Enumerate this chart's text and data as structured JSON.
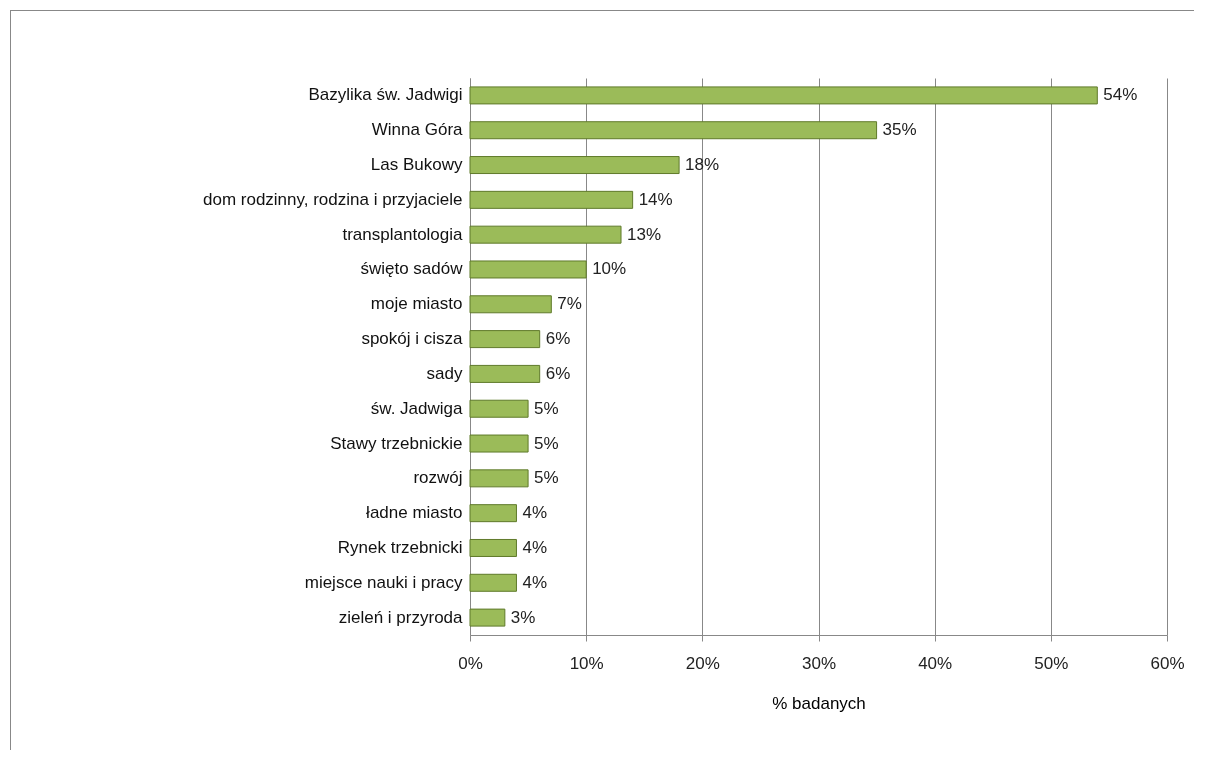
{
  "chart_data": {
    "type": "bar",
    "orientation": "horizontal",
    "xlabel": "% badanych",
    "categories": [
      "Bazylika św. Jadwigi",
      "Winna Góra",
      "Las Bukowy",
      "dom rodzinny, rodzina i przyjaciele",
      "transplantologia",
      "święto sadów",
      "moje miasto",
      "spokój i cisza",
      "sady",
      "św. Jadwiga",
      "Stawy trzebnickie",
      "rozwój",
      "ładne miasto",
      "Rynek trzebnicki",
      "miejsce nauki i pracy",
      "zieleń i przyroda"
    ],
    "values": [
      54,
      35,
      18,
      14,
      13,
      10,
      7,
      6,
      6,
      5,
      5,
      5,
      4,
      4,
      4,
      3
    ],
    "value_labels": [
      "54%",
      "35%",
      "18%",
      "14%",
      "13%",
      "10%",
      "7%",
      "6%",
      "6%",
      "5%",
      "5%",
      "5%",
      "4%",
      "4%",
      "4%",
      "3%"
    ],
    "color": "#9bbb59",
    "xlim": [
      0,
      60
    ],
    "xticks": [
      {
        "value": 0,
        "label": "0%"
      },
      {
        "value": 10,
        "label": "10%"
      },
      {
        "value": 20,
        "label": "20%"
      },
      {
        "value": 30,
        "label": "30%"
      },
      {
        "value": 40,
        "label": "40%"
      },
      {
        "value": 50,
        "label": "50%"
      },
      {
        "value": 60,
        "label": "60%"
      }
    ],
    "grid": "x"
  }
}
